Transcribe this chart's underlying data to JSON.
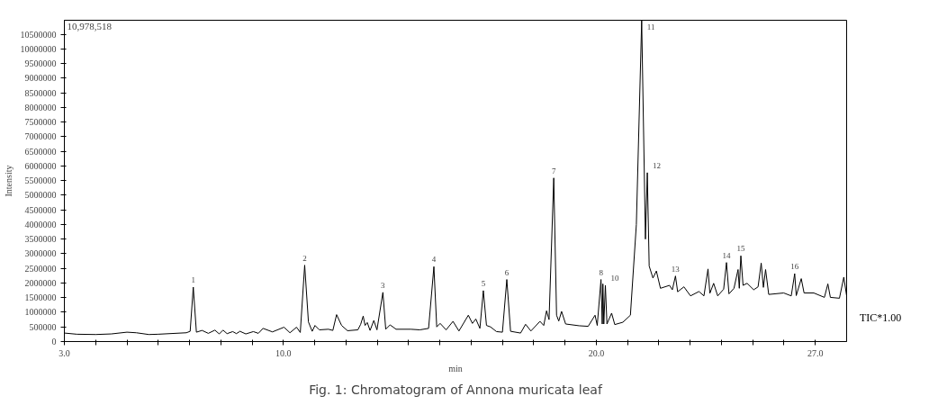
{
  "chart_data": {
    "type": "line",
    "title": "Fig. 1: Chromatogram of Annona muricata leaf",
    "xlabel": "min",
    "ylabel": "Intensity",
    "xlim": [
      3.0,
      28.0
    ],
    "ylim": [
      0,
      10978518
    ],
    "xticks": [
      {
        "value": 3,
        "label": "3.0"
      },
      {
        "value": 4,
        "label": null
      },
      {
        "value": 5,
        "label": null
      },
      {
        "value": 6,
        "label": null
      },
      {
        "value": 7,
        "label": null
      },
      {
        "value": 8,
        "label": null
      },
      {
        "value": 9,
        "label": null
      },
      {
        "value": 10,
        "label": "10.0"
      },
      {
        "value": 11,
        "label": null
      },
      {
        "value": 12,
        "label": null
      },
      {
        "value": 13,
        "label": null
      },
      {
        "value": 14,
        "label": null
      },
      {
        "value": 15,
        "label": null
      },
      {
        "value": 16,
        "label": null
      },
      {
        "value": 17,
        "label": null
      },
      {
        "value": 18,
        "label": null
      },
      {
        "value": 19,
        "label": null
      },
      {
        "value": 20,
        "label": "20.0"
      },
      {
        "value": 21,
        "label": null
      },
      {
        "value": 22,
        "label": null
      },
      {
        "value": 23,
        "label": null
      },
      {
        "value": 24,
        "label": null
      },
      {
        "value": 25,
        "label": null
      },
      {
        "value": 26,
        "label": null
      },
      {
        "value": 27,
        "label": "27.0"
      }
    ],
    "yticks": [
      0,
      500000,
      1000000,
      1500000,
      2000000,
      2500000,
      3000000,
      3500000,
      4000000,
      4500000,
      5000000,
      5500000,
      6000000,
      6500000,
      7000000,
      7500000,
      8000000,
      8500000,
      9000000,
      9500000,
      10000000,
      10500000
    ],
    "series": [
      {
        "color": "#000000",
        "x": [
          3.0,
          3.4,
          4.0,
          4.5,
          5.0,
          5.3,
          5.7,
          6.0,
          6.9,
          7.02,
          7.12,
          7.22,
          7.4,
          7.6,
          7.81,
          7.95,
          8.07,
          8.2,
          8.38,
          8.5,
          8.61,
          8.8,
          9.04,
          9.2,
          9.35,
          9.65,
          10.02,
          10.21,
          10.42,
          10.54,
          10.68,
          10.8,
          10.92,
          11.01,
          11.15,
          11.44,
          11.58,
          11.7,
          11.86,
          12.05,
          12.38,
          12.47,
          12.55,
          12.61,
          12.68,
          12.77,
          12.89,
          12.99,
          13.18,
          13.27,
          13.41,
          13.6,
          14.07,
          14.36,
          14.64,
          14.81,
          14.9,
          15.01,
          15.2,
          15.42,
          15.61,
          15.91,
          16.04,
          16.15,
          16.28,
          16.39,
          16.49,
          16.62,
          16.81,
          17.0,
          17.14,
          17.26,
          17.58,
          17.74,
          17.91,
          18.2,
          18.32,
          18.41,
          18.49,
          18.64,
          18.73,
          18.8,
          18.89,
          19.02,
          19.45,
          19.74,
          19.96,
          20.03,
          20.15,
          20.19,
          20.21,
          20.24,
          20.29,
          20.34,
          20.49,
          20.59,
          20.85,
          21.09,
          21.28,
          21.45,
          21.57,
          21.63,
          21.69,
          21.81,
          21.92,
          22.05,
          22.34,
          22.43,
          22.53,
          22.6,
          22.8,
          23.01,
          23.28,
          23.44,
          23.57,
          23.63,
          23.75,
          23.88,
          24.07,
          24.16,
          24.24,
          24.4,
          24.53,
          24.57,
          24.62,
          24.69,
          24.82,
          25.03,
          25.17,
          25.27,
          25.34,
          25.41,
          25.51,
          25.99,
          26.23,
          26.34,
          26.39,
          26.55,
          26.64,
          26.95,
          27.29,
          27.4,
          27.48,
          27.77,
          27.91,
          28.0
        ],
        "values": [
          290000,
          250000,
          240000,
          260000,
          320000,
          300000,
          240000,
          250000,
          300000,
          350000,
          1860000,
          320000,
          380000,
          280000,
          390000,
          260000,
          390000,
          270000,
          340000,
          270000,
          350000,
          260000,
          340000,
          280000,
          450000,
          330000,
          490000,
          300000,
          490000,
          310000,
          2610000,
          670000,
          350000,
          550000,
          400000,
          420000,
          380000,
          920000,
          550000,
          370000,
          400000,
          590000,
          870000,
          550000,
          650000,
          380000,
          720000,
          400000,
          1680000,
          420000,
          570000,
          420000,
          420000,
          400000,
          450000,
          2560000,
          500000,
          620000,
          400000,
          690000,
          360000,
          900000,
          620000,
          770000,
          450000,
          1740000,
          550000,
          500000,
          340000,
          320000,
          2120000,
          350000,
          290000,
          590000,
          360000,
          690000,
          550000,
          1050000,
          750000,
          5590000,
          900000,
          700000,
          1030000,
          600000,
          540000,
          520000,
          900000,
          550000,
          2120000,
          600000,
          1970000,
          600000,
          1920000,
          600000,
          970000,
          580000,
          660000,
          900000,
          4000000,
          10970000,
          3500000,
          5770000,
          2580000,
          2170000,
          2410000,
          1820000,
          1920000,
          1770000,
          2240000,
          1700000,
          1870000,
          1560000,
          1710000,
          1560000,
          2480000,
          1650000,
          1990000,
          1560000,
          1790000,
          2700000,
          1630000,
          1820000,
          2460000,
          1820000,
          2930000,
          1920000,
          1990000,
          1770000,
          1870000,
          2680000,
          1850000,
          2460000,
          1610000,
          1660000,
          1560000,
          2320000,
          1570000,
          2150000,
          1660000,
          1660000,
          1510000,
          1970000,
          1510000,
          1480000,
          2200000,
          1560000
        ]
      }
    ],
    "annotations": [
      {
        "text": "1",
        "x": 7.12,
        "y": 1860000
      },
      {
        "text": "2",
        "x": 10.68,
        "y": 2610000
      },
      {
        "text": "3",
        "x": 13.18,
        "y": 1680000
      },
      {
        "text": "4",
        "x": 14.81,
        "y": 2560000
      },
      {
        "text": "5",
        "x": 16.39,
        "y": 1740000
      },
      {
        "text": "6",
        "x": 17.14,
        "y": 2120000
      },
      {
        "text": "7",
        "x": 18.64,
        "y": 5590000
      },
      {
        "text": "8",
        "x": 20.15,
        "y": 2120000
      },
      {
        "text": "10",
        "x": 20.29,
        "y": 1920000
      },
      {
        "text": "11",
        "x": 21.45,
        "y": 10970000
      },
      {
        "text": "12",
        "x": 21.63,
        "y": 5770000
      },
      {
        "text": "13",
        "x": 22.53,
        "y": 2240000
      },
      {
        "text": "14",
        "x": 24.16,
        "y": 2700000
      },
      {
        "text": "15",
        "x": 24.62,
        "y": 2930000
      },
      {
        "text": "16",
        "x": 26.34,
        "y": 2320000
      },
      "10,978,518",
      "TIC*1.00"
    ]
  }
}
